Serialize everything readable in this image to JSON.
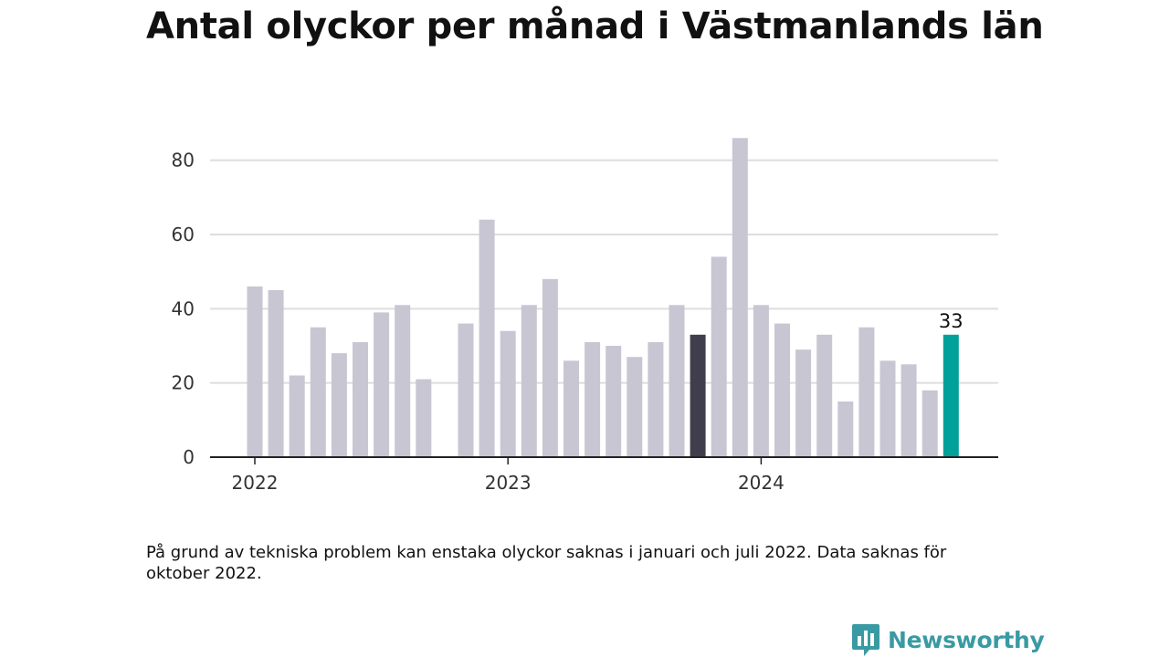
{
  "title": "Antal olyckor per månad i Västmanlands län",
  "footnote": "På grund av tekniska problem kan enstaka olyckor saknas i januari och juli 2022. Data saknas för oktober 2022.",
  "brand": {
    "name": "Newsworthy",
    "icon": "bar-chart-speech-bubble-icon",
    "color": "#3a9aa3"
  },
  "colors": {
    "bar_default": "#c8c6d2",
    "bar_dark": "#403e4c",
    "bar_highlight": "#00a19a",
    "grid": "#dddddd",
    "axis": "#222222"
  },
  "chart_data": {
    "type": "bar",
    "x": [
      "2022-01",
      "2022-02",
      "2022-03",
      "2022-04",
      "2022-05",
      "2022-06",
      "2022-07",
      "2022-08",
      "2022-09",
      "2022-10",
      "2022-11",
      "2022-12",
      "2023-01",
      "2023-02",
      "2023-03",
      "2023-04",
      "2023-05",
      "2023-06",
      "2023-07",
      "2023-08",
      "2023-09",
      "2023-10",
      "2023-11",
      "2023-12",
      "2024-01",
      "2024-02",
      "2024-03",
      "2024-04",
      "2024-05",
      "2024-06",
      "2024-07",
      "2024-08",
      "2024-09",
      "2024-10"
    ],
    "values": [
      46,
      45,
      22,
      35,
      28,
      31,
      39,
      41,
      21,
      null,
      36,
      64,
      34,
      41,
      48,
      26,
      31,
      30,
      27,
      31,
      41,
      33,
      54,
      86,
      41,
      36,
      29,
      33,
      15,
      35,
      26,
      25,
      18,
      33
    ],
    "highlight_dark": "2023-10",
    "highlight_accent": "2024-10",
    "data_labels": [
      {
        "x": "2024-10",
        "text": "33"
      }
    ],
    "yticks": [
      0,
      20,
      40,
      60,
      80
    ],
    "xticks": [
      {
        "x": "2022-01",
        "label": "2022"
      },
      {
        "x": "2023-01",
        "label": "2023"
      },
      {
        "x": "2024-01",
        "label": "2024"
      }
    ],
    "ylim": [
      0,
      90
    ],
    "xlabel": "",
    "ylabel": "",
    "grid": true,
    "legend": false
  }
}
